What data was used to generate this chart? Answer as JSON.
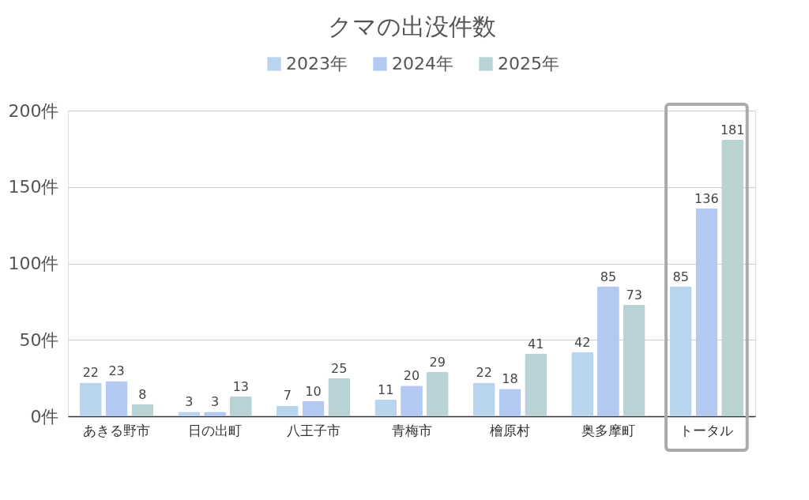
{
  "chart_data": {
    "type": "bar",
    "title": "クマの出没件数",
    "categories": [
      "あきる野市",
      "日の出町",
      "八王子市",
      "青梅市",
      "檜原村",
      "奥多摩町",
      "トータル"
    ],
    "series": [
      {
        "name": "2023年",
        "color": "#b8d4ee",
        "values": [
          22,
          3,
          7,
          11,
          22,
          42,
          85
        ]
      },
      {
        "name": "2024年",
        "color": "#b3c9f2",
        "values": [
          23,
          3,
          10,
          20,
          18,
          85,
          136
        ]
      },
      {
        "name": "2025年",
        "color": "#b8d2d6",
        "values": [
          8,
          13,
          25,
          29,
          41,
          73,
          181
        ]
      }
    ],
    "ylim": [
      0,
      200
    ],
    "yticks": [
      {
        "value": 0,
        "label": "0件"
      },
      {
        "value": 50,
        "label": "50件"
      },
      {
        "value": 100,
        "label": "100件"
      },
      {
        "value": 150,
        "label": "150件"
      },
      {
        "value": 200,
        "label": "200件"
      }
    ],
    "grid": "y",
    "legend": "top",
    "data_labels": true
  }
}
